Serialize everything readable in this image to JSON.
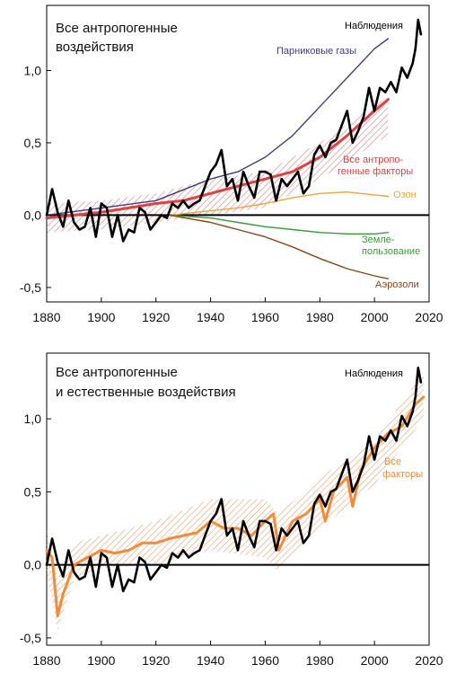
{
  "chart_data": [
    {
      "type": "line",
      "title_lines": [
        "Все антропогенные",
        "воздействия"
      ],
      "xlim": [
        1880,
        2020
      ],
      "ylim": [
        -0.6,
        1.45
      ],
      "x_ticks": [
        1880,
        1900,
        1920,
        1940,
        1960,
        1980,
        2000,
        2020
      ],
      "x_tick_labels": [
        "1880",
        "1900",
        "1920",
        "1940",
        "1960",
        "1980",
        "2000",
        "2020"
      ],
      "y_ticks": [
        -0.5,
        0.0,
        0.5,
        1.0
      ],
      "y_tick_labels": [
        "-0,5",
        "0,0",
        "0,5",
        "1,0"
      ],
      "band": {
        "x": [
          1880,
          1900,
          1920,
          1940,
          1960,
          1980,
          2005
        ],
        "lower": [
          -0.12,
          -0.1,
          -0.05,
          0.0,
          0.05,
          0.25,
          0.55
        ],
        "upper": [
          0.08,
          0.1,
          0.15,
          0.25,
          0.3,
          0.5,
          0.82
        ],
        "color": "#d98585"
      },
      "series": [
        {
          "name": "Наблюдения",
          "color": "#000000",
          "x": [
            1880,
            1882,
            1884,
            1886,
            1888,
            1890,
            1892,
            1894,
            1896,
            1898,
            1900,
            1902,
            1904,
            1906,
            1908,
            1910,
            1912,
            1914,
            1916,
            1918,
            1920,
            1922,
            1924,
            1926,
            1928,
            1930,
            1932,
            1934,
            1936,
            1938,
            1940,
            1942,
            1944,
            1946,
            1948,
            1950,
            1952,
            1954,
            1956,
            1958,
            1960,
            1962,
            1964,
            1966,
            1968,
            1970,
            1972,
            1974,
            1976,
            1978,
            1980,
            1982,
            1984,
            1986,
            1988,
            1990,
            1992,
            1994,
            1996,
            1998,
            2000,
            2002,
            2004,
            2006,
            2008,
            2010,
            2012,
            2014,
            2015,
            2016,
            2017
          ],
          "y": [
            0.0,
            0.18,
            0.02,
            -0.08,
            0.1,
            -0.05,
            -0.1,
            -0.08,
            0.05,
            -0.15,
            0.08,
            0.05,
            -0.15,
            0.0,
            -0.18,
            -0.1,
            -0.12,
            0.05,
            0.02,
            -0.1,
            -0.05,
            0.0,
            -0.02,
            0.08,
            0.05,
            0.1,
            0.05,
            0.08,
            0.1,
            0.2,
            0.3,
            0.35,
            0.45,
            0.2,
            0.25,
            0.1,
            0.3,
            0.2,
            0.12,
            0.3,
            0.3,
            0.28,
            0.1,
            0.25,
            0.2,
            0.25,
            0.3,
            0.15,
            0.2,
            0.42,
            0.48,
            0.4,
            0.5,
            0.52,
            0.62,
            0.72,
            0.5,
            0.58,
            0.68,
            0.88,
            0.72,
            0.88,
            0.85,
            0.92,
            0.85,
            1.02,
            0.95,
            1.05,
            1.15,
            1.35,
            1.25
          ]
        },
        {
          "name": "Парниковые газы",
          "color": "#3c3c8c",
          "x": [
            1880,
            1900,
            1920,
            1940,
            1950,
            1960,
            1970,
            1980,
            1990,
            2000,
            2005
          ],
          "y": [
            0.0,
            0.05,
            0.1,
            0.25,
            0.3,
            0.4,
            0.55,
            0.75,
            0.95,
            1.15,
            1.22
          ]
        },
        {
          "name": "Все антропо-генные факторы",
          "label_lines": [
            "Все антропо-",
            "генные факторы"
          ],
          "color": "#e04040",
          "x": [
            1880,
            1890,
            1900,
            1910,
            1920,
            1930,
            1940,
            1950,
            1960,
            1970,
            1980,
            1990,
            2000,
            2005
          ],
          "y": [
            -0.02,
            0.0,
            0.02,
            0.05,
            0.08,
            0.1,
            0.15,
            0.2,
            0.25,
            0.3,
            0.4,
            0.55,
            0.72,
            0.8
          ]
        },
        {
          "name": "Озон",
          "color": "#e8a838",
          "x": [
            1925,
            1940,
            1950,
            1960,
            1970,
            1980,
            1990,
            2000,
            2005
          ],
          "y": [
            0.0,
            0.03,
            0.05,
            0.08,
            0.12,
            0.15,
            0.16,
            0.14,
            0.13
          ]
        },
        {
          "name": "Земле-пользование",
          "label_lines": [
            "Земле-",
            "пользование"
          ],
          "color": "#3a9a3a",
          "x": [
            1925,
            1940,
            1950,
            1960,
            1970,
            1980,
            1990,
            2000,
            2005
          ],
          "y": [
            0.0,
            -0.02,
            -0.05,
            -0.08,
            -0.1,
            -0.12,
            -0.13,
            -0.13,
            -0.12
          ]
        },
        {
          "name": "Аэрозоли",
          "color": "#8b4513",
          "x": [
            1925,
            1940,
            1950,
            1960,
            1970,
            1980,
            1990,
            2000,
            2005
          ],
          "y": [
            0.0,
            -0.05,
            -0.1,
            -0.15,
            -0.22,
            -0.3,
            -0.37,
            -0.42,
            -0.44
          ]
        }
      ],
      "label_colors": {
        "Наблюдения": "#000000",
        "Парниковые газы": "#3c3c8c",
        "Все антропо-генные факторы": "#e04040",
        "Озон": "#e8a838",
        "Земле-пользование": "#3a9a3a",
        "Аэрозоли": "#8b4513"
      }
    },
    {
      "type": "line",
      "title_lines": [
        "Все антропогенные",
        "и естественные воздействия"
      ],
      "xlim": [
        1880,
        2020
      ],
      "ylim": [
        -0.55,
        1.45
      ],
      "x_ticks": [
        1880,
        1900,
        1920,
        1940,
        1960,
        1980,
        2000,
        2020
      ],
      "x_tick_labels": [
        "1880",
        "1900",
        "1920",
        "1940",
        "1960",
        "1980",
        "2000",
        "2020"
      ],
      "y_ticks": [
        -0.5,
        0.0,
        0.5,
        1.0
      ],
      "y_tick_labels": [
        "-0,5",
        "0,0",
        "0,5",
        "1,0"
      ],
      "band": {
        "x": [
          1880,
          1884,
          1890,
          1900,
          1920,
          1940,
          1960,
          1965,
          1980,
          2000,
          2018
        ],
        "lower": [
          -0.05,
          -0.45,
          -0.1,
          -0.02,
          0.0,
          0.1,
          0.05,
          -0.05,
          0.25,
          0.55,
          1.0
        ],
        "upper": [
          0.25,
          -0.1,
          0.15,
          0.2,
          0.3,
          0.45,
          0.45,
          0.35,
          0.6,
          0.85,
          1.32
        ],
        "color": "#f0a070"
      },
      "series": [
        {
          "name": "Наблюдения",
          "color": "#000000",
          "x": [
            1880,
            1882,
            1884,
            1886,
            1888,
            1890,
            1892,
            1894,
            1896,
            1898,
            1900,
            1902,
            1904,
            1906,
            1908,
            1910,
            1912,
            1914,
            1916,
            1918,
            1920,
            1922,
            1924,
            1926,
            1928,
            1930,
            1932,
            1934,
            1936,
            1938,
            1940,
            1942,
            1944,
            1946,
            1948,
            1950,
            1952,
            1954,
            1956,
            1958,
            1960,
            1962,
            1964,
            1966,
            1968,
            1970,
            1972,
            1974,
            1976,
            1978,
            1980,
            1982,
            1984,
            1986,
            1988,
            1990,
            1992,
            1994,
            1996,
            1998,
            2000,
            2002,
            2004,
            2006,
            2008,
            2010,
            2012,
            2014,
            2015,
            2016,
            2017
          ],
          "y": [
            0.0,
            0.18,
            0.02,
            -0.08,
            0.1,
            -0.05,
            -0.1,
            -0.08,
            0.05,
            -0.15,
            0.08,
            0.05,
            -0.15,
            0.0,
            -0.18,
            -0.1,
            -0.12,
            0.05,
            0.02,
            -0.1,
            -0.05,
            0.0,
            -0.02,
            0.08,
            0.05,
            0.1,
            0.05,
            0.08,
            0.1,
            0.2,
            0.3,
            0.35,
            0.45,
            0.2,
            0.25,
            0.1,
            0.3,
            0.2,
            0.12,
            0.3,
            0.3,
            0.28,
            0.1,
            0.25,
            0.2,
            0.25,
            0.3,
            0.15,
            0.2,
            0.42,
            0.48,
            0.4,
            0.5,
            0.52,
            0.62,
            0.72,
            0.5,
            0.58,
            0.68,
            0.88,
            0.72,
            0.88,
            0.85,
            0.92,
            0.85,
            1.02,
            0.95,
            1.05,
            1.15,
            1.35,
            1.25
          ]
        },
        {
          "name": "Все факторы",
          "label_lines": [
            "Все",
            "факторы"
          ],
          "color": "#f08c3c",
          "x": [
            1880,
            1882,
            1884,
            1886,
            1888,
            1890,
            1895,
            1900,
            1905,
            1910,
            1915,
            1920,
            1925,
            1930,
            1935,
            1940,
            1945,
            1950,
            1955,
            1960,
            1963,
            1965,
            1970,
            1975,
            1980,
            1982,
            1985,
            1990,
            1992,
            1995,
            2000,
            2005,
            2010,
            2015,
            2018
          ],
          "y": [
            0.1,
            0.05,
            -0.35,
            -0.2,
            -0.1,
            0.0,
            0.05,
            0.1,
            0.08,
            0.1,
            0.15,
            0.15,
            0.18,
            0.2,
            0.22,
            0.3,
            0.25,
            0.25,
            0.2,
            0.3,
            0.35,
            0.1,
            0.3,
            0.35,
            0.45,
            0.3,
            0.5,
            0.6,
            0.4,
            0.65,
            0.8,
            0.9,
            0.95,
            1.1,
            1.15
          ]
        }
      ],
      "label_colors": {
        "Наблюдения": "#000000",
        "Все факторы": "#f08c3c"
      }
    }
  ]
}
